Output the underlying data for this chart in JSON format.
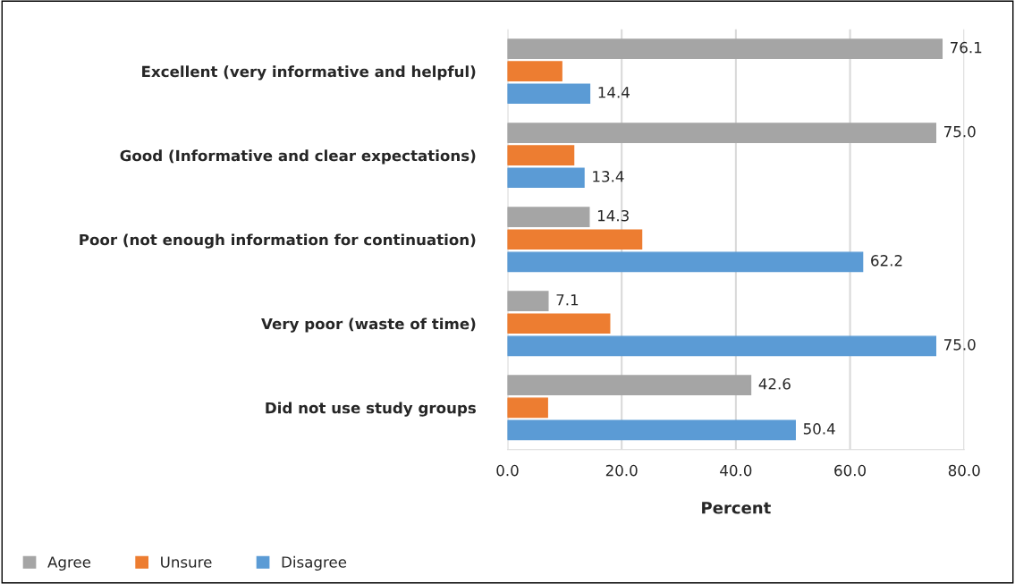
{
  "chart_data": {
    "type": "bar",
    "orientation": "horizontal",
    "xlabel": "Percent",
    "categories": [
      "Excellent (very informative and helpful)",
      "Good (Informative and clear expectations)",
      "Poor (not enough information for continuation)",
      "Very poor (waste of time)",
      "Did not use study groups"
    ],
    "series": [
      {
        "name": "Agree",
        "color": "#a5a5a5",
        "values": [
          76.1,
          75.0,
          14.3,
          7.1,
          42.6
        ],
        "value_labels": [
          "76.1",
          "75.0",
          "14.3",
          "7.1",
          "42.6"
        ]
      },
      {
        "name": "Unsure",
        "color": "#ed7d31",
        "values": [
          9.5,
          11.6,
          23.5,
          17.9,
          7.0
        ]
      },
      {
        "name": "Disagree",
        "color": "#5b9bd5",
        "values": [
          14.4,
          13.4,
          62.2,
          75.0,
          50.4
        ],
        "value_labels": [
          "14.4",
          "13.4",
          "62.2",
          "75.0",
          "50.4"
        ]
      }
    ],
    "xlim": [
      0,
      80
    ],
    "xticks": [
      {
        "value": 0,
        "label": "0.0"
      },
      {
        "value": 20,
        "label": "20.0"
      },
      {
        "value": 40,
        "label": "40.0"
      },
      {
        "value": 60,
        "label": "60.0"
      },
      {
        "value": 80,
        "label": "80.0"
      }
    ],
    "grid": "x",
    "legend": "bottom left"
  }
}
